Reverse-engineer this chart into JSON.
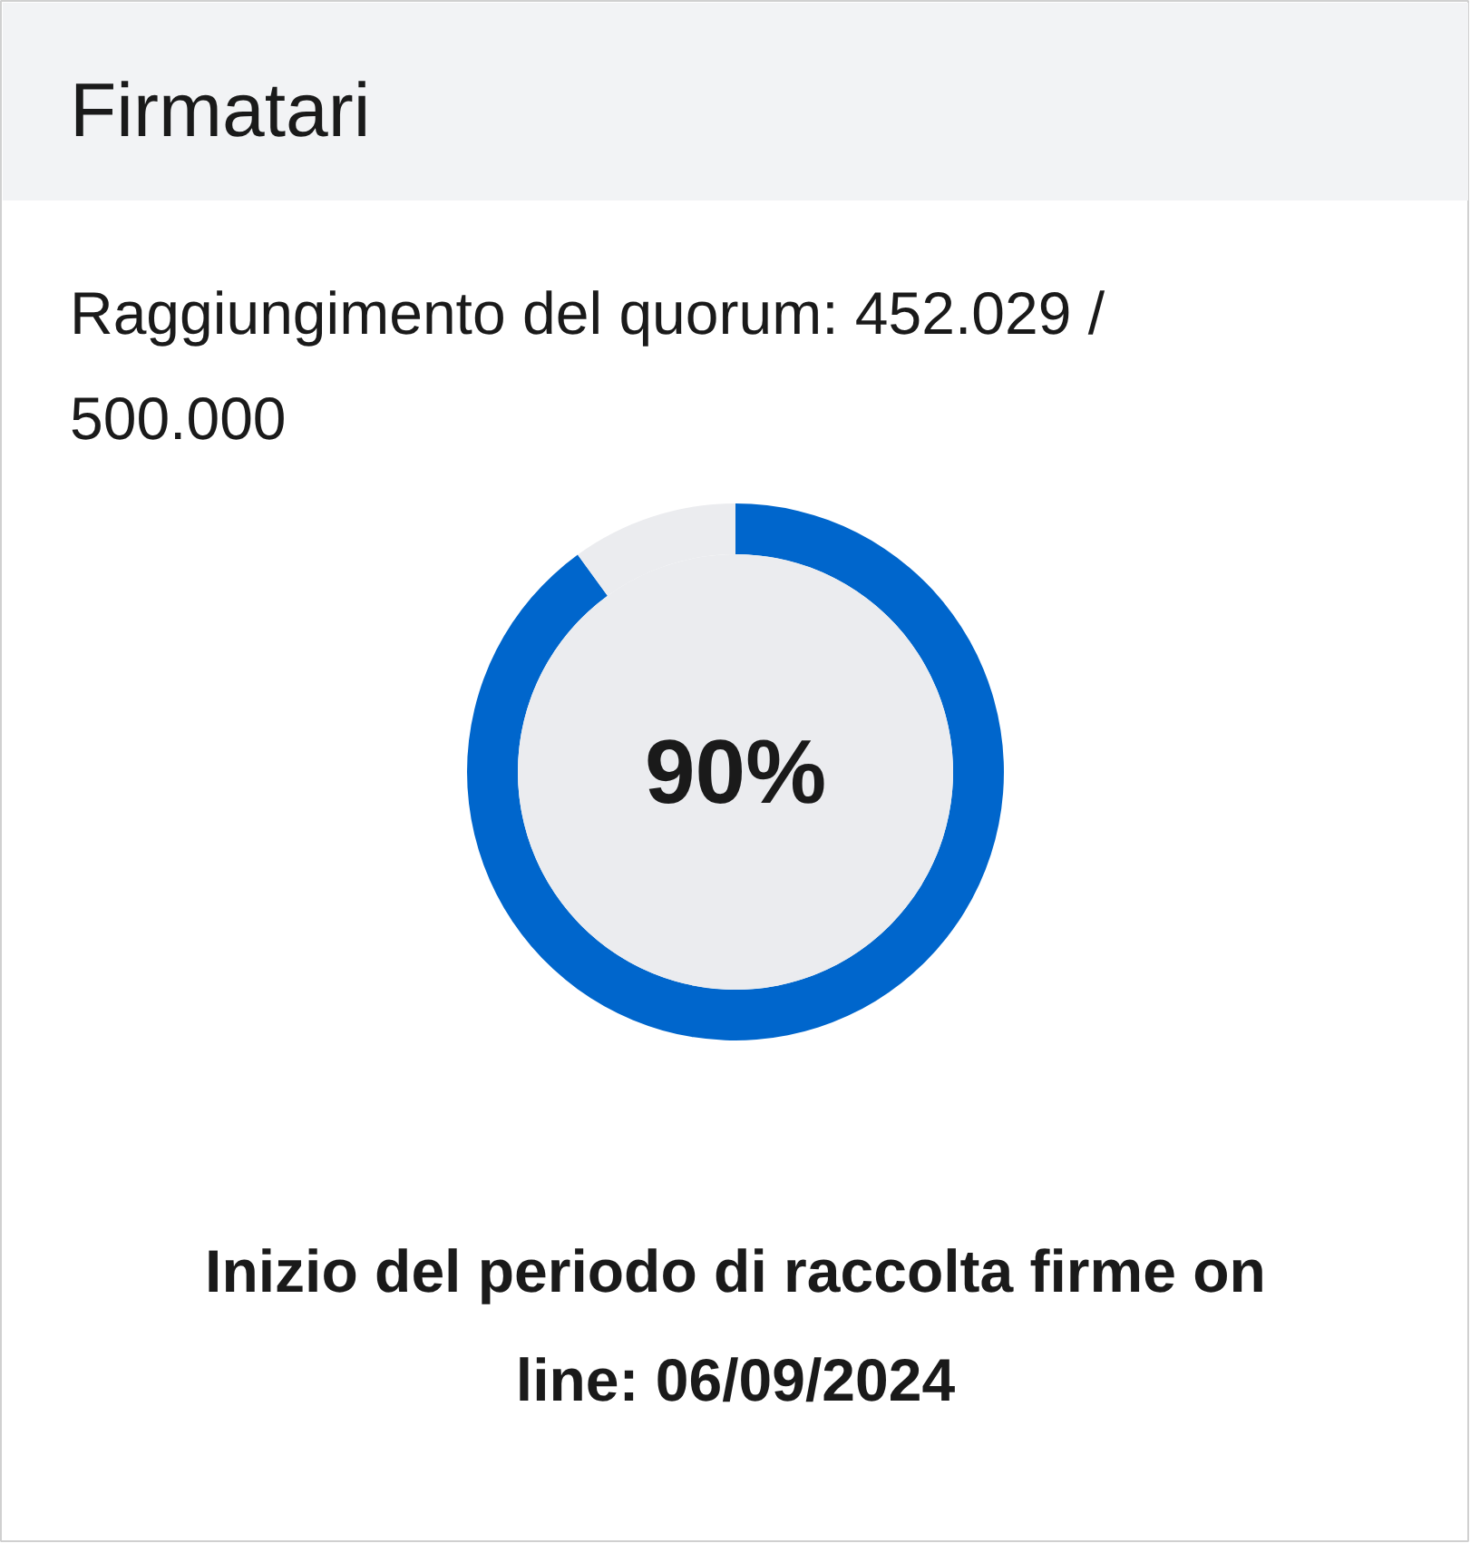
{
  "chart_data": {
    "type": "donut",
    "title": "Firmatari",
    "categories": [
      null,
      null
    ],
    "values": [
      90,
      10
    ],
    "colors": [
      "#0066cc",
      "#ebecef"
    ],
    "value_labels": [
      "90%",
      null
    ],
    "annotations": [
      "Raggiungimento del quorum: 452.029 / 500.000",
      "Inizio del periodo di raccolta firme on line: 06/09/2024"
    ]
  }
}
